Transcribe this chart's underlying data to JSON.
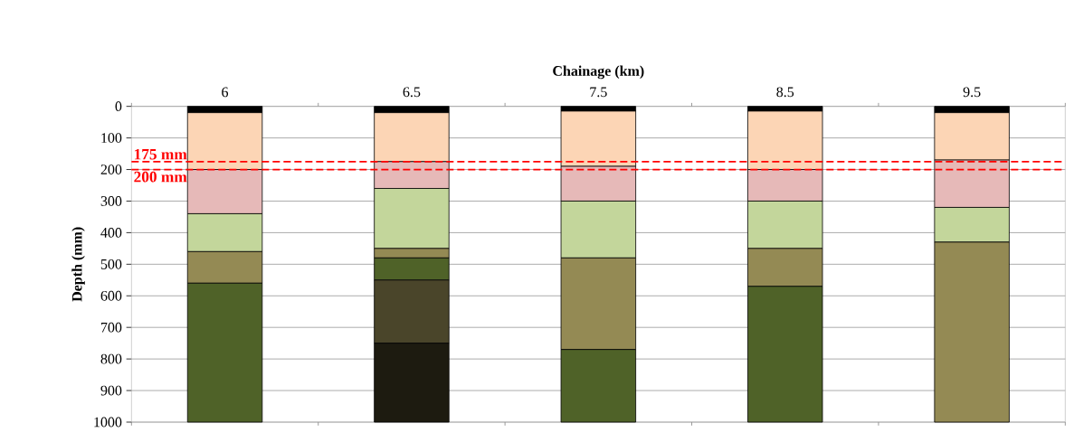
{
  "chart_data": {
    "type": "bar",
    "xlabel": "Chainage (km)",
    "ylabel": "Depth (mm)",
    "categories": [
      "6",
      "6.5",
      "7.5",
      "8.5",
      "9.5"
    ],
    "stacked": true,
    "series": [
      {
        "color": "#000000",
        "values": [
          20,
          20,
          15,
          15,
          20
        ]
      },
      {
        "color": "#fcd5b5",
        "values": [
          180,
          155,
          175,
          185,
          150
        ]
      },
      {
        "color": "#e6b9b8",
        "values": [
          140,
          85,
          110,
          100,
          150
        ]
      },
      {
        "color": "#c3d69b",
        "values": [
          120,
          190,
          180,
          150,
          110
        ]
      },
      {
        "color": "#948a54",
        "values": [
          100,
          30,
          290,
          120,
          570
        ]
      },
      {
        "color": "#4f6228",
        "values": [
          440,
          70,
          230,
          430,
          null
        ]
      },
      {
        "color": "#4a452a",
        "values": [
          null,
          200,
          null,
          null,
          null
        ]
      },
      {
        "color": "#1d1b10",
        "values": [
          null,
          250,
          null,
          null,
          null
        ]
      }
    ],
    "ylim": [
      1000,
      0
    ],
    "yticks": [
      0,
      100,
      200,
      300,
      400,
      500,
      600,
      700,
      800,
      900,
      1000
    ],
    "grid": "y",
    "ref_lines": [
      {
        "axis": "y",
        "value": 175,
        "label": "175 mm",
        "color": "#ff0000",
        "line_style": "dashed"
      },
      {
        "axis": "y",
        "value": 200,
        "label": "200 mm",
        "color": "#ff0000",
        "line_style": "dashed"
      }
    ]
  }
}
